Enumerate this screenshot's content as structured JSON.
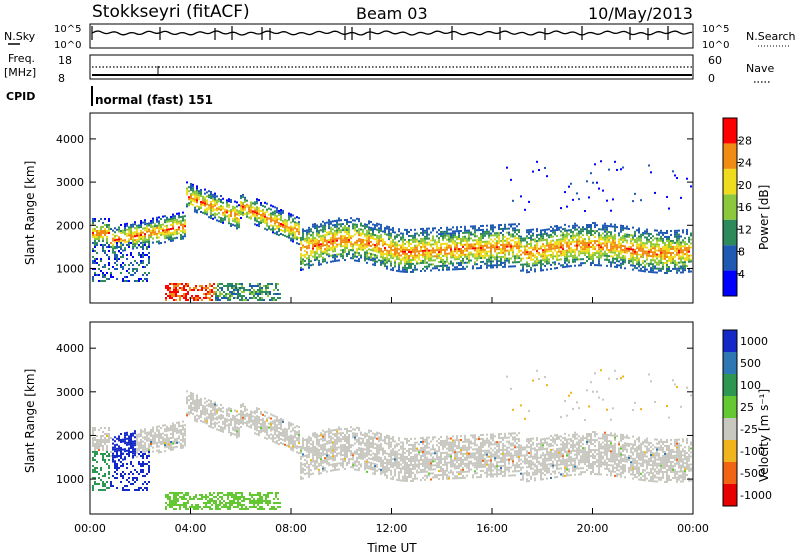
{
  "header": {
    "station": "Stokkseyri (fitACF)",
    "beam": "Beam 03",
    "date": "10/May/2013"
  },
  "noise_panel": {
    "left_label": "N.Sky",
    "right_label": "N.Search",
    "ticks_left": [
      "10^5",
      "10^0"
    ],
    "ticks_right": [
      "10^5",
      "10^0"
    ]
  },
  "freq_panel": {
    "left_label_1": "Freq.",
    "left_label_2": "[MHz]",
    "right_label": "Nave",
    "ticks_left": [
      "18",
      "8"
    ],
    "ticks_right": [
      "60",
      "0"
    ],
    "freq_value": 10.5,
    "nave_value": 45
  },
  "cpid": {
    "label": "CPID",
    "value": "normal (fast) 151"
  },
  "chart_data": [
    {
      "type": "heatmap",
      "quantity": "power",
      "ylabel": "Slant Range [km]",
      "xlabel": "",
      "ylim": [
        200,
        4600
      ],
      "yticks": [
        "1000",
        "2000",
        "3000",
        "4000"
      ],
      "colorbar_label": "Power [dB]",
      "colorbar_ticks": [
        "4",
        "8",
        "12",
        "16",
        "20",
        "24",
        "28"
      ],
      "colorbar_range": [
        0,
        32
      ],
      "colors": [
        "#0000ff",
        "#1e5ab4",
        "#2d8a5a",
        "#8cc83c",
        "#f0dc1e",
        "#f08c14",
        "#ff0000"
      ]
    },
    {
      "type": "heatmap",
      "quantity": "velocity",
      "ylabel": "Slant Range [km]",
      "xlabel": "Time UT",
      "ylim": [
        200,
        4600
      ],
      "yticks": [
        "1000",
        "2000",
        "3000",
        "4000"
      ],
      "xticks": [
        "00:00",
        "04:00",
        "08:00",
        "12:00",
        "16:00",
        "20:00",
        "00:00"
      ],
      "colorbar_label": "Velocity [m s⁻¹]",
      "colorbar_ticks": [
        "1000",
        "500",
        "100",
        "25",
        "-25",
        "-100",
        "-500",
        "-1000"
      ],
      "colors": [
        "#1428c8",
        "#2d78b4",
        "#2d9650",
        "#64c832",
        "#c8c8c0",
        "#f0b41e",
        "#f06414",
        "#e60000"
      ]
    }
  ]
}
